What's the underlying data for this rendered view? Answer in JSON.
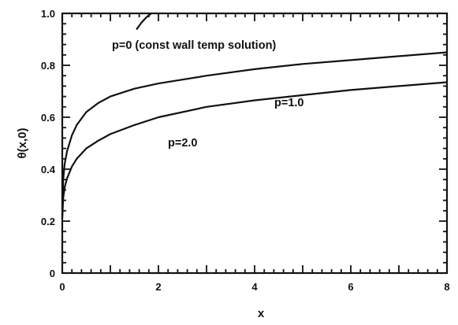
{
  "chart_data": {
    "type": "line",
    "title": "",
    "xlabel": "x",
    "ylabel": "θ(x,0)",
    "xlim": [
      0,
      8
    ],
    "ylim": [
      0,
      1.0
    ],
    "x_ticks": [
      "0",
      "2",
      "4",
      "6",
      "8"
    ],
    "y_ticks": [
      "0",
      "0.2",
      "0.4",
      "0.6",
      "0.8",
      "1.0"
    ],
    "grid": false,
    "legend": "none",
    "annotations": [
      "p=0 (const wall temp solution)",
      "p=1.0",
      "p=2.0"
    ],
    "series": [
      {
        "name": "p=0 (const wall temp solution)",
        "x": [
          1.55,
          1.65,
          1.75,
          1.85
        ],
        "y": [
          0.94,
          0.965,
          0.985,
          1.0
        ]
      },
      {
        "name": "p=1.0",
        "x": [
          0,
          0.02,
          0.05,
          0.1,
          0.2,
          0.3,
          0.5,
          0.75,
          1.0,
          1.5,
          2,
          3,
          4,
          5,
          6,
          7,
          8
        ],
        "y": [
          0.22,
          0.36,
          0.42,
          0.47,
          0.53,
          0.57,
          0.62,
          0.655,
          0.68,
          0.71,
          0.73,
          0.76,
          0.785,
          0.805,
          0.82,
          0.835,
          0.85
        ]
      },
      {
        "name": "p=2.0",
        "x": [
          0,
          0.02,
          0.05,
          0.1,
          0.2,
          0.3,
          0.5,
          0.75,
          1.0,
          1.5,
          2,
          3,
          4,
          5,
          6,
          7,
          8
        ],
        "y": [
          0.21,
          0.29,
          0.33,
          0.365,
          0.41,
          0.44,
          0.48,
          0.51,
          0.535,
          0.57,
          0.6,
          0.64,
          0.665,
          0.685,
          0.705,
          0.72,
          0.735
        ]
      }
    ]
  }
}
